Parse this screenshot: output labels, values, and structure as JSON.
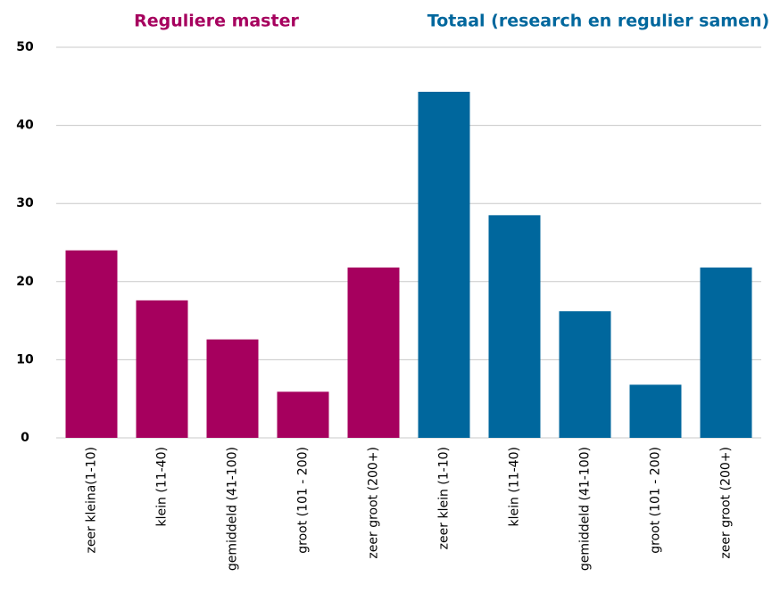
{
  "chart_data": {
    "type": "bar",
    "categories": [
      "zeer kleina(1-10)",
      "klein (11-40)",
      "gemiddeld (41-100)",
      "groot (101 - 200)",
      "zeer groot (200+)",
      "zeer klein (1-10)",
      "klein (11-40)",
      "gemiddeld (41-100)",
      "groot (101 - 200)",
      "zeer groot (200+)"
    ],
    "series": [
      {
        "name": "Reguliere master",
        "color": "#a6005e",
        "values": [
          24.0,
          17.6,
          12.6,
          5.9,
          21.8,
          null,
          null,
          null,
          null,
          null
        ]
      },
      {
        "name": "Totaal (research en regulier samen)",
        "color": "#00679d",
        "values": [
          null,
          null,
          null,
          null,
          null,
          44.3,
          28.5,
          16.2,
          6.8,
          21.8
        ]
      }
    ],
    "ylim": [
      0,
      50
    ],
    "yticks": [
      0,
      10,
      20,
      30,
      40,
      50
    ],
    "grid": true
  }
}
